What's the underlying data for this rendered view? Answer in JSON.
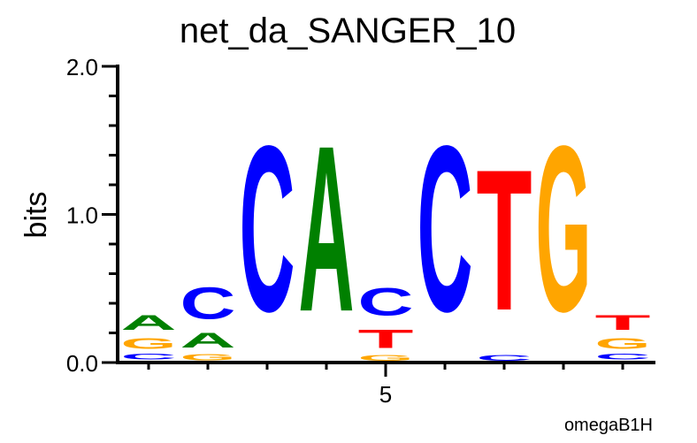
{
  "chart_data": {
    "type": "sequence-logo",
    "title": "net_da_SANGER_10",
    "ylabel": "bits",
    "xlabel": "",
    "footer": "omegaB1H",
    "ylim": [
      0,
      2.0
    ],
    "y_tick_labels": [
      "0.0",
      "1.0",
      "2.0"
    ],
    "y_ticks": [
      0,
      1,
      2
    ],
    "x_tick_labels": [
      {
        "position": 5,
        "label": "5"
      }
    ],
    "colors": {
      "A": "#008000",
      "C": "#0000ff",
      "G": "#ffa500",
      "T": "#ff0000"
    },
    "positions": [
      {
        "position": 1,
        "stack": [
          {
            "base": "T",
            "bits": 0.01
          },
          {
            "base": "C",
            "bits": 0.06
          },
          {
            "base": "G",
            "bits": 0.12
          },
          {
            "base": "A",
            "bits": 0.16
          }
        ]
      },
      {
        "position": 2,
        "stack": [
          {
            "base": "G",
            "bits": 0.07
          },
          {
            "base": "A",
            "bits": 0.16
          },
          {
            "base": "C",
            "bits": 0.34
          }
        ]
      },
      {
        "position": 3,
        "stack": [
          {
            "base": "C",
            "bits": 1.79
          }
        ]
      },
      {
        "position": 4,
        "stack": [
          {
            "base": "A",
            "bits": 1.79
          }
        ]
      },
      {
        "position": 5,
        "stack": [
          {
            "base": "G",
            "bits": 0.06
          },
          {
            "base": "T",
            "bits": 0.2
          },
          {
            "base": "C",
            "bits": 0.3
          }
        ]
      },
      {
        "position": 6,
        "stack": [
          {
            "base": "C",
            "bits": 1.79
          }
        ]
      },
      {
        "position": 7,
        "stack": [
          {
            "base": "C",
            "bits": 0.06
          },
          {
            "base": "T",
            "bits": 1.52
          }
        ]
      },
      {
        "position": 8,
        "stack": [
          {
            "base": "G",
            "bits": 1.79
          }
        ]
      },
      {
        "position": 9,
        "stack": [
          {
            "base": "A",
            "bits": 0.01
          },
          {
            "base": "C",
            "bits": 0.06
          },
          {
            "base": "G",
            "bits": 0.12
          },
          {
            "base": "T",
            "bits": 0.16
          }
        ]
      }
    ]
  }
}
